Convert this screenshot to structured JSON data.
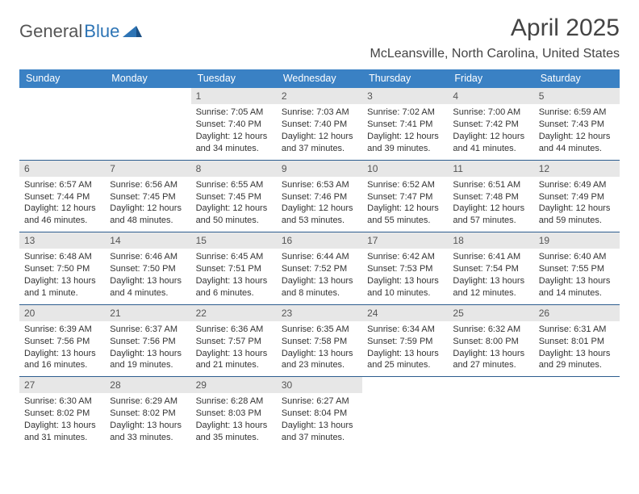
{
  "brand": {
    "part1": "General",
    "part2": "Blue"
  },
  "title": "April 2025",
  "location": "McLeansville, North Carolina, United States",
  "colors": {
    "header_bg": "#3a81c4",
    "header_text": "#ffffff",
    "week_divider": "#2d5d8f",
    "daynum_bg": "#e7e7e7",
    "brand_blue": "#2d74b5",
    "brand_gray": "#555555",
    "page_bg": "#ffffff"
  },
  "day_headers": [
    "Sunday",
    "Monday",
    "Tuesday",
    "Wednesday",
    "Thursday",
    "Friday",
    "Saturday"
  ],
  "weeks": [
    [
      {
        "empty": true
      },
      {
        "empty": true
      },
      {
        "n": "1",
        "sunrise": "Sunrise: 7:05 AM",
        "sunset": "Sunset: 7:40 PM",
        "daylight": "Daylight: 12 hours and 34 minutes."
      },
      {
        "n": "2",
        "sunrise": "Sunrise: 7:03 AM",
        "sunset": "Sunset: 7:40 PM",
        "daylight": "Daylight: 12 hours and 37 minutes."
      },
      {
        "n": "3",
        "sunrise": "Sunrise: 7:02 AM",
        "sunset": "Sunset: 7:41 PM",
        "daylight": "Daylight: 12 hours and 39 minutes."
      },
      {
        "n": "4",
        "sunrise": "Sunrise: 7:00 AM",
        "sunset": "Sunset: 7:42 PM",
        "daylight": "Daylight: 12 hours and 41 minutes."
      },
      {
        "n": "5",
        "sunrise": "Sunrise: 6:59 AM",
        "sunset": "Sunset: 7:43 PM",
        "daylight": "Daylight: 12 hours and 44 minutes."
      }
    ],
    [
      {
        "n": "6",
        "sunrise": "Sunrise: 6:57 AM",
        "sunset": "Sunset: 7:44 PM",
        "daylight": "Daylight: 12 hours and 46 minutes."
      },
      {
        "n": "7",
        "sunrise": "Sunrise: 6:56 AM",
        "sunset": "Sunset: 7:45 PM",
        "daylight": "Daylight: 12 hours and 48 minutes."
      },
      {
        "n": "8",
        "sunrise": "Sunrise: 6:55 AM",
        "sunset": "Sunset: 7:45 PM",
        "daylight": "Daylight: 12 hours and 50 minutes."
      },
      {
        "n": "9",
        "sunrise": "Sunrise: 6:53 AM",
        "sunset": "Sunset: 7:46 PM",
        "daylight": "Daylight: 12 hours and 53 minutes."
      },
      {
        "n": "10",
        "sunrise": "Sunrise: 6:52 AM",
        "sunset": "Sunset: 7:47 PM",
        "daylight": "Daylight: 12 hours and 55 minutes."
      },
      {
        "n": "11",
        "sunrise": "Sunrise: 6:51 AM",
        "sunset": "Sunset: 7:48 PM",
        "daylight": "Daylight: 12 hours and 57 minutes."
      },
      {
        "n": "12",
        "sunrise": "Sunrise: 6:49 AM",
        "sunset": "Sunset: 7:49 PM",
        "daylight": "Daylight: 12 hours and 59 minutes."
      }
    ],
    [
      {
        "n": "13",
        "sunrise": "Sunrise: 6:48 AM",
        "sunset": "Sunset: 7:50 PM",
        "daylight": "Daylight: 13 hours and 1 minute."
      },
      {
        "n": "14",
        "sunrise": "Sunrise: 6:46 AM",
        "sunset": "Sunset: 7:50 PM",
        "daylight": "Daylight: 13 hours and 4 minutes."
      },
      {
        "n": "15",
        "sunrise": "Sunrise: 6:45 AM",
        "sunset": "Sunset: 7:51 PM",
        "daylight": "Daylight: 13 hours and 6 minutes."
      },
      {
        "n": "16",
        "sunrise": "Sunrise: 6:44 AM",
        "sunset": "Sunset: 7:52 PM",
        "daylight": "Daylight: 13 hours and 8 minutes."
      },
      {
        "n": "17",
        "sunrise": "Sunrise: 6:42 AM",
        "sunset": "Sunset: 7:53 PM",
        "daylight": "Daylight: 13 hours and 10 minutes."
      },
      {
        "n": "18",
        "sunrise": "Sunrise: 6:41 AM",
        "sunset": "Sunset: 7:54 PM",
        "daylight": "Daylight: 13 hours and 12 minutes."
      },
      {
        "n": "19",
        "sunrise": "Sunrise: 6:40 AM",
        "sunset": "Sunset: 7:55 PM",
        "daylight": "Daylight: 13 hours and 14 minutes."
      }
    ],
    [
      {
        "n": "20",
        "sunrise": "Sunrise: 6:39 AM",
        "sunset": "Sunset: 7:56 PM",
        "daylight": "Daylight: 13 hours and 16 minutes."
      },
      {
        "n": "21",
        "sunrise": "Sunrise: 6:37 AM",
        "sunset": "Sunset: 7:56 PM",
        "daylight": "Daylight: 13 hours and 19 minutes."
      },
      {
        "n": "22",
        "sunrise": "Sunrise: 6:36 AM",
        "sunset": "Sunset: 7:57 PM",
        "daylight": "Daylight: 13 hours and 21 minutes."
      },
      {
        "n": "23",
        "sunrise": "Sunrise: 6:35 AM",
        "sunset": "Sunset: 7:58 PM",
        "daylight": "Daylight: 13 hours and 23 minutes."
      },
      {
        "n": "24",
        "sunrise": "Sunrise: 6:34 AM",
        "sunset": "Sunset: 7:59 PM",
        "daylight": "Daylight: 13 hours and 25 minutes."
      },
      {
        "n": "25",
        "sunrise": "Sunrise: 6:32 AM",
        "sunset": "Sunset: 8:00 PM",
        "daylight": "Daylight: 13 hours and 27 minutes."
      },
      {
        "n": "26",
        "sunrise": "Sunrise: 6:31 AM",
        "sunset": "Sunset: 8:01 PM",
        "daylight": "Daylight: 13 hours and 29 minutes."
      }
    ],
    [
      {
        "n": "27",
        "sunrise": "Sunrise: 6:30 AM",
        "sunset": "Sunset: 8:02 PM",
        "daylight": "Daylight: 13 hours and 31 minutes."
      },
      {
        "n": "28",
        "sunrise": "Sunrise: 6:29 AM",
        "sunset": "Sunset: 8:02 PM",
        "daylight": "Daylight: 13 hours and 33 minutes."
      },
      {
        "n": "29",
        "sunrise": "Sunrise: 6:28 AM",
        "sunset": "Sunset: 8:03 PM",
        "daylight": "Daylight: 13 hours and 35 minutes."
      },
      {
        "n": "30",
        "sunrise": "Sunrise: 6:27 AM",
        "sunset": "Sunset: 8:04 PM",
        "daylight": "Daylight: 13 hours and 37 minutes."
      },
      {
        "empty": true
      },
      {
        "empty": true
      },
      {
        "empty": true
      }
    ]
  ]
}
